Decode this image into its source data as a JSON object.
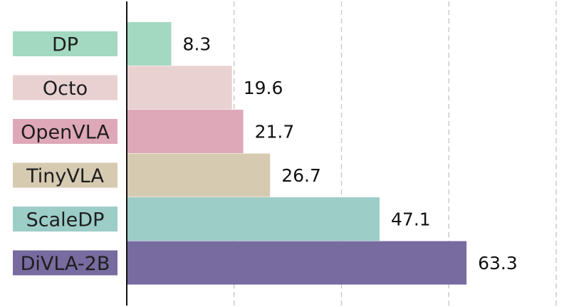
{
  "chart_data": {
    "type": "bar",
    "orientation": "horizontal",
    "title": "",
    "xlabel": "",
    "ylabel": "",
    "categories": [
      "DP",
      "Octo",
      "OpenVLA",
      "TinyVLA",
      "ScaleDP",
      "DiVLA-2B"
    ],
    "values": [
      8.3,
      19.6,
      21.7,
      26.7,
      47.1,
      63.3
    ],
    "value_labels": [
      "8.3",
      "19.6",
      "21.7",
      "26.7",
      "47.1",
      "63.3"
    ],
    "colors": [
      "#a3d9c0",
      "#e9d1d2",
      "#dea8b8",
      "#d6cab1",
      "#9ccdc7",
      "#776ba0"
    ],
    "xlim": [
      0,
      80
    ],
    "x_gridlines": [
      20,
      40,
      60,
      80
    ],
    "grid": "vertical dashed",
    "category_labels_as_colored_boxes": true,
    "legend": "none"
  }
}
